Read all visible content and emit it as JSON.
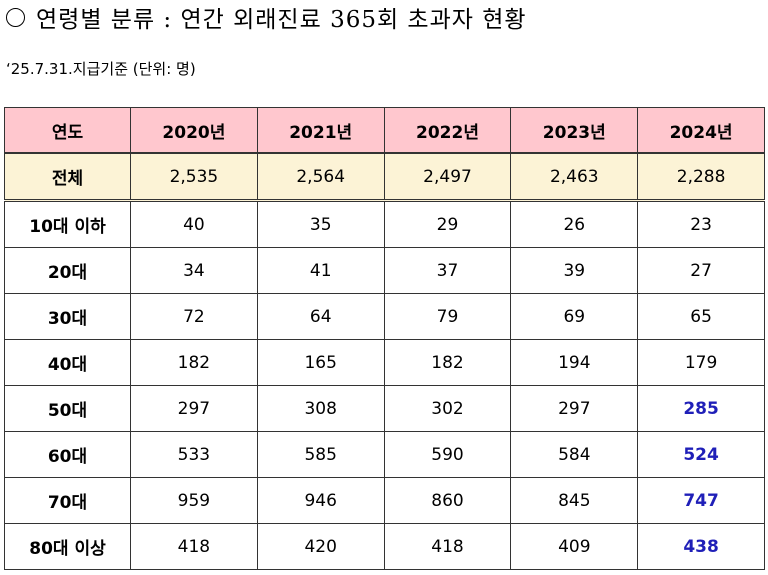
{
  "title": "연령별 분류 : 연간 외래진료 365회 초과자 현황",
  "subtitle": "‘25.7.31.지급기준 (단위: 명)",
  "table": {
    "headers": [
      "연도",
      "2020년",
      "2021년",
      "2022년",
      "2023년",
      "2024년"
    ],
    "rows": [
      {
        "label": "전체",
        "values": [
          "2,535",
          "2,564",
          "2,497",
          "2,463",
          "2,288"
        ]
      },
      {
        "label": "10대 이하",
        "values": [
          "40",
          "35",
          "29",
          "26",
          "23"
        ]
      },
      {
        "label": "20대",
        "values": [
          "34",
          "41",
          "37",
          "39",
          "27"
        ]
      },
      {
        "label": "30대",
        "values": [
          "72",
          "64",
          "79",
          "69",
          "65"
        ]
      },
      {
        "label": "40대",
        "values": [
          "182",
          "165",
          "182",
          "194",
          "179"
        ]
      },
      {
        "label": "50대",
        "values": [
          "297",
          "308",
          "302",
          "297",
          "285"
        ]
      },
      {
        "label": "60대",
        "values": [
          "533",
          "585",
          "590",
          "584",
          "524"
        ]
      },
      {
        "label": "70대",
        "values": [
          "959",
          "946",
          "860",
          "845",
          "747"
        ]
      },
      {
        "label": "80대 이상",
        "values": [
          "418",
          "420",
          "418",
          "409",
          "438"
        ]
      }
    ]
  },
  "colors": {
    "header_bg": "#ffc7ce",
    "total_row_bg": "#fcf3d6",
    "highlight_text": "#1f1fb8"
  }
}
